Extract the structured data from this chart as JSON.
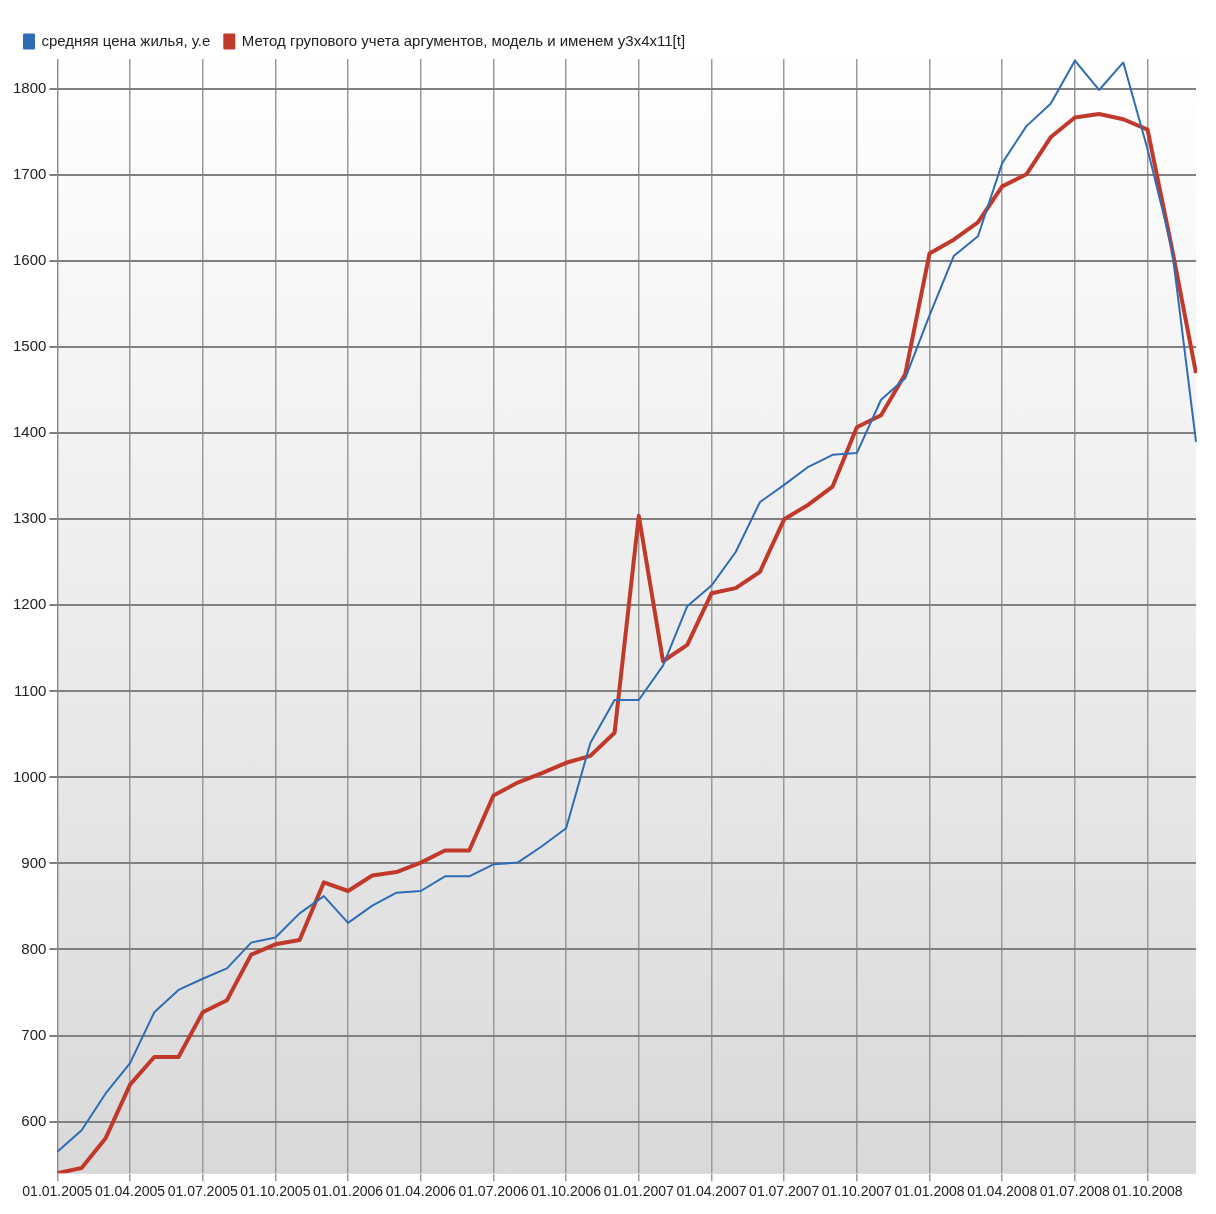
{
  "chart_data": {
    "type": "line",
    "categories": [
      "01.01.2005",
      null,
      null,
      "01.04.2005",
      null,
      null,
      "01.07.2005",
      null,
      null,
      "01.10.2005",
      null,
      null,
      "01.01.2006",
      null,
      null,
      "01.04.2006",
      null,
      null,
      "01.07.2006",
      null,
      null,
      "01.10.2006",
      null,
      null,
      "01.01.2007",
      null,
      null,
      "01.04.2007",
      null,
      null,
      "01.07.2007",
      null,
      null,
      "01.10.2007",
      null,
      null,
      "01.01.2008",
      null,
      null,
      "01.04.2008",
      null,
      null,
      "01.07.2008",
      null,
      null,
      "01.10.2008",
      null,
      null
    ],
    "series": [
      {
        "name": "средняя цена жилья, у.е",
        "color": "#2e6db4",
        "values": [
          565,
          590,
          633,
          668,
          727,
          753,
          766,
          778,
          808,
          814,
          842,
          862,
          831,
          851,
          866,
          868,
          885,
          885,
          899,
          901,
          920,
          941,
          1040,
          1090,
          1090,
          1130,
          1199,
          1223,
          1262,
          1320,
          1340,
          1361,
          1375,
          1377,
          1439,
          1464,
          1537,
          1606,
          1629,
          1714,
          1757,
          1783,
          1833,
          1799,
          1831,
          1730,
          1616,
          1390
        ]
      },
      {
        "name": "Метод групового учета аргументов, модель и именем y3x4x11[t]",
        "color": "#c0392b",
        "values": [
          540,
          546,
          581,
          643,
          675,
          675,
          727,
          741,
          794,
          806,
          811,
          878,
          868,
          886,
          890,
          901,
          915,
          915,
          979,
          994,
          1005,
          1017,
          1025,
          1052,
          1304,
          1135,
          1154,
          1214,
          1220,
          1239,
          1300,
          1317,
          1338,
          1407,
          1421,
          1469,
          1609,
          1625,
          1645,
          1687,
          1701,
          1744,
          1767,
          1771,
          1765,
          1753,
          1616,
          1470
        ]
      }
    ],
    "ylim": [
      540,
      1835
    ],
    "yticks": [
      600,
      700,
      800,
      900,
      1000,
      1100,
      1200,
      1300,
      1400,
      1500,
      1600,
      1700,
      1800
    ],
    "grid": true,
    "legend": "top left",
    "marker": "none",
    "line_style": "solid"
  }
}
